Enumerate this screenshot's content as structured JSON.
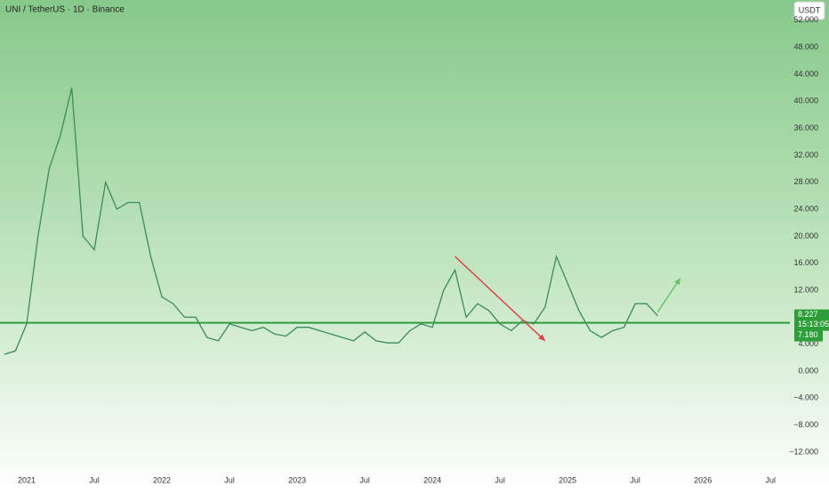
{
  "chart_data": {
    "type": "line",
    "title": "UNI / TetherUS · 1D · Binance",
    "currency_button": "USDT",
    "x": [
      "2020-11",
      "2020-12",
      "2021-01",
      "2021-02",
      "2021-03",
      "2021-04",
      "2021-05",
      "2021-06",
      "2021-07",
      "2021-08",
      "2021-09",
      "2021-10",
      "2021-11",
      "2021-12",
      "2022-01",
      "2022-02",
      "2022-03",
      "2022-04",
      "2022-05",
      "2022-06",
      "2022-07",
      "2022-08",
      "2022-09",
      "2022-10",
      "2022-11",
      "2022-12",
      "2023-01",
      "2023-02",
      "2023-03",
      "2023-04",
      "2023-05",
      "2023-06",
      "2023-07",
      "2023-08",
      "2023-09",
      "2023-10",
      "2023-11",
      "2023-12",
      "2024-01",
      "2024-02",
      "2024-03",
      "2024-04",
      "2024-05",
      "2024-06",
      "2024-07",
      "2024-08",
      "2024-09",
      "2024-10",
      "2024-11",
      "2024-12",
      "2025-01",
      "2025-02",
      "2025-03",
      "2025-04",
      "2025-05",
      "2025-06",
      "2025-07",
      "2025-08",
      "2025-09"
    ],
    "series": [
      {
        "color": "#3d8a5c",
        "values": [
          2.5,
          3,
          7,
          20,
          30,
          35,
          42,
          20,
          18,
          28,
          24,
          25,
          25,
          17,
          11,
          10,
          8,
          8,
          5,
          4.5,
          7,
          6.5,
          6,
          6.5,
          5.5,
          5.2,
          6.5,
          6.5,
          6,
          5.5,
          5,
          4.5,
          5.8,
          4.5,
          4.2,
          4.2,
          6,
          7,
          6.5,
          12,
          15,
          8,
          10,
          9,
          7,
          6,
          7.5,
          7,
          9.5,
          17,
          13,
          9,
          6,
          5,
          6,
          6.5,
          10,
          10,
          8.2
        ]
      }
    ],
    "ylim": [
      -14.9,
      55
    ],
    "yticks": [
      {
        "value": 52,
        "label": "52.000"
      },
      {
        "value": 48,
        "label": "48.000"
      },
      {
        "value": 44,
        "label": "44.000"
      },
      {
        "value": 40,
        "label": "40.000"
      },
      {
        "value": 36,
        "label": "36.000"
      },
      {
        "value": 32,
        "label": "32.000"
      },
      {
        "value": 28,
        "label": "28.000"
      },
      {
        "value": 24,
        "label": "24.000"
      },
      {
        "value": 20,
        "label": "20.000"
      },
      {
        "value": 16,
        "label": "16.000"
      },
      {
        "value": 12,
        "label": "12.000"
      },
      {
        "value": 4,
        "label": "4.000"
      },
      {
        "value": 0,
        "label": "0.000"
      },
      {
        "value": -4,
        "label": "−4.000"
      },
      {
        "value": -8,
        "label": "−8.000"
      },
      {
        "value": -12,
        "label": "−12.000"
      }
    ],
    "xticks": [
      {
        "value": "2021-01",
        "label": "2021"
      },
      {
        "value": "2021-07",
        "label": "Jul"
      },
      {
        "value": "2022-01",
        "label": "2022"
      },
      {
        "value": "2022-07",
        "label": "Jul"
      },
      {
        "value": "2023-01",
        "label": "2023"
      },
      {
        "value": "2023-07",
        "label": "Jul"
      },
      {
        "value": "2024-01",
        "label": "2024"
      },
      {
        "value": "2024-07",
        "label": "Jul"
      },
      {
        "value": "2025-01",
        "label": "2025"
      },
      {
        "value": "2025-07",
        "label": "Jul"
      },
      {
        "value": "2026-01",
        "label": "2026"
      },
      {
        "value": "2026-07",
        "label": "Jul"
      }
    ],
    "last_price": {
      "value": 8.227,
      "label": "8.227",
      "countdown": "15:13:05"
    },
    "support_line": {
      "value": 7.18,
      "label": "7.180",
      "color": "#2e9e3a"
    },
    "arrows": [
      {
        "color": "#e0404a",
        "from": [
          "2024-03",
          17
        ],
        "to": [
          "2024-11",
          4.5
        ]
      },
      {
        "color": "#6cc070",
        "from": [
          "2025-09",
          8.8
        ],
        "to": [
          "2025-11",
          13.8
        ]
      }
    ]
  }
}
